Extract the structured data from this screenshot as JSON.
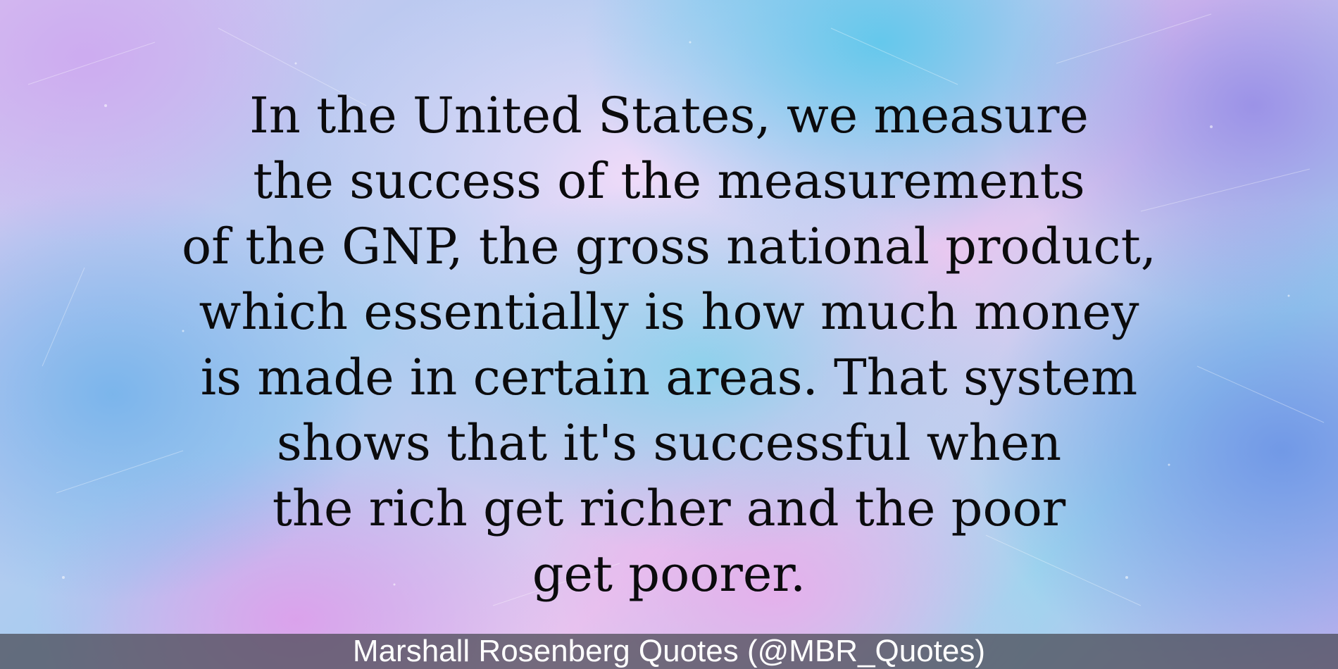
{
  "quote": {
    "lines": [
      "In the United States, we measure",
      "the success of the measurements",
      "of the GNP, the gross national product,",
      "which essentially is how much money",
      "is made in certain areas. That system",
      "shows that it's successful when",
      "the rich get richer and the poor",
      "get poorer."
    ]
  },
  "footer": {
    "attribution": "Marshall Rosenberg Quotes (@MBR_Quotes)"
  },
  "colors": {
    "text": "#0b0b0d",
    "footer_text": "#ffffff"
  }
}
